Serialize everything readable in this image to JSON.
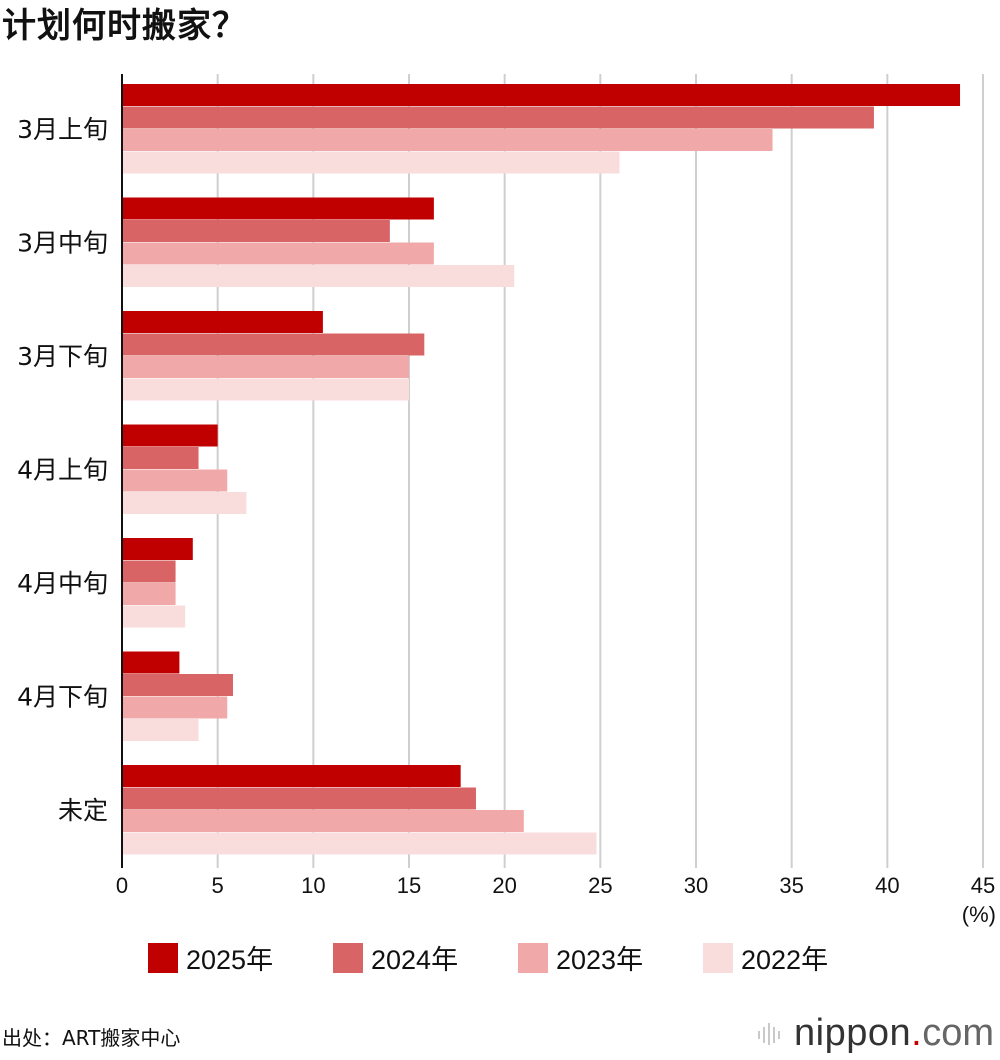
{
  "title": "计划何时搬家？",
  "source": "出处：ART搬家中心",
  "brand": {
    "name": "nippon",
    "dot": ".",
    "tld": "com"
  },
  "chart_data": {
    "type": "bar",
    "orientation": "horizontal",
    "categories": [
      "3月上旬",
      "3月中旬",
      "3月下旬",
      "4月上旬",
      "4月中旬",
      "4月下旬",
      "未定"
    ],
    "series": [
      {
        "name": "2025年",
        "color": "#c00000",
        "values": [
          43.8,
          16.3,
          10.5,
          5.0,
          3.7,
          3.0,
          17.7
        ]
      },
      {
        "name": "2024年",
        "color": "#d96466",
        "values": [
          39.3,
          14.0,
          15.8,
          4.0,
          2.8,
          5.8,
          18.5
        ]
      },
      {
        "name": "2023年",
        "color": "#f0a8a8",
        "values": [
          34.0,
          16.3,
          15.0,
          5.5,
          2.8,
          5.5,
          21.0
        ]
      },
      {
        "name": "2022年",
        "color": "#f9dcdc",
        "values": [
          26.0,
          20.5,
          15.0,
          6.5,
          3.3,
          4.0,
          24.8
        ]
      }
    ],
    "xlim": [
      0,
      45
    ],
    "xticks": [
      "0",
      "5",
      "10",
      "15",
      "20",
      "25",
      "30",
      "35",
      "40",
      "45"
    ],
    "unit": "(%)",
    "grid": true,
    "legend_position": "bottom"
  }
}
